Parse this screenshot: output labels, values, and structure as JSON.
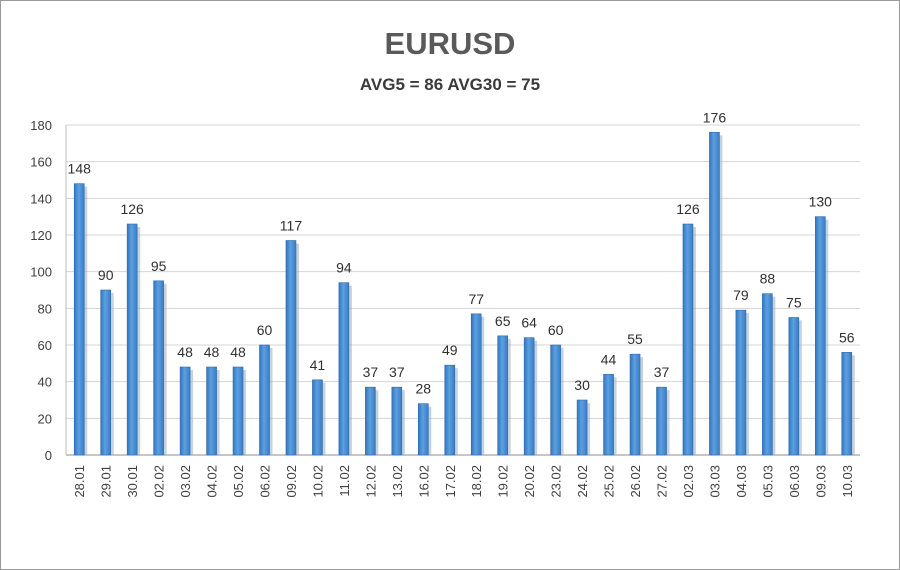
{
  "chart_data": {
    "type": "bar",
    "title": "EURUSD",
    "subtitle": "AVG5 = 86 AVG30 = 75",
    "xlabel": "",
    "ylabel": "",
    "ylim": [
      0,
      180
    ],
    "yticks": [
      0,
      20,
      40,
      60,
      80,
      100,
      120,
      140,
      160,
      180
    ],
    "grid": true,
    "legend": "none",
    "bar_color": "#4a8fd4",
    "categories": [
      "28.01",
      "29.01",
      "30.01",
      "02.02",
      "03.02",
      "04.02",
      "05.02",
      "06.02",
      "09.02",
      "10.02",
      "11.02",
      "12.02",
      "13.02",
      "16.02",
      "17.02",
      "18.02",
      "19.02",
      "20.02",
      "23.02",
      "24.02",
      "25.02",
      "26.02",
      "27.02",
      "02.03",
      "03.03",
      "04.03",
      "05.03",
      "06.03",
      "09.03",
      "10.03"
    ],
    "values": [
      148,
      90,
      126,
      95,
      48,
      48,
      48,
      60,
      117,
      41,
      94,
      37,
      37,
      28,
      49,
      77,
      65,
      64,
      60,
      30,
      44,
      55,
      37,
      126,
      176,
      79,
      88,
      75,
      130,
      56
    ]
  }
}
